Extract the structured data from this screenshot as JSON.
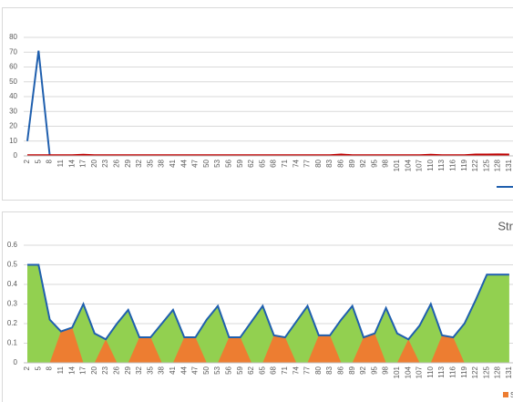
{
  "chart_data": [
    {
      "type": "line",
      "ylim": [
        0,
        80
      ],
      "yticks": [
        0,
        10,
        20,
        30,
        40,
        50,
        60,
        70,
        80
      ],
      "grid": true,
      "categories": [
        2,
        5,
        8,
        11,
        14,
        17,
        20,
        23,
        26,
        29,
        32,
        35,
        38,
        41,
        44,
        47,
        50,
        53,
        56,
        59,
        62,
        65,
        68,
        71,
        74,
        77,
        80,
        83,
        86,
        89,
        92,
        95,
        98,
        101,
        104,
        107,
        110,
        113,
        116,
        119,
        122,
        125,
        128,
        131
      ],
      "series": [
        {
          "color": "#1f5fae",
          "values": [
            10,
            71,
            0,
            null,
            null,
            null,
            null,
            null,
            null,
            null,
            null,
            null,
            null,
            null,
            null,
            null,
            null,
            null,
            null,
            null,
            null,
            null,
            null,
            null,
            null,
            null,
            null,
            null,
            null,
            null,
            null,
            null,
            null,
            null,
            null,
            null,
            null,
            null,
            null,
            null,
            null,
            null,
            null,
            null
          ]
        },
        {
          "color": "#c00000",
          "values": [
            0.5,
            0.5,
            0.5,
            0.5,
            0.5,
            0.8,
            0.5,
            0.5,
            0.5,
            0.5,
            0.5,
            0.5,
            0.5,
            0.5,
            0.5,
            0.5,
            0.5,
            0.5,
            0.5,
            0.5,
            0.5,
            0.5,
            0.5,
            0.5,
            0.5,
            0.5,
            0.5,
            0.5,
            0.9,
            0.5,
            0.5,
            0.5,
            0.5,
            0.5,
            0.5,
            0.5,
            0.8,
            0.5,
            0.5,
            0.5,
            0.9,
            0.9,
            1,
            0.9
          ]
        }
      ]
    },
    {
      "type": "area",
      "title": "Str",
      "ylim": [
        0,
        0.6
      ],
      "yticks": [
        0,
        0.1,
        0.2,
        0.3,
        0.4,
        0.5,
        0.6
      ],
      "grid": true,
      "categories": [
        2,
        5,
        8,
        11,
        14,
        17,
        20,
        23,
        26,
        29,
        32,
        35,
        38,
        41,
        44,
        47,
        50,
        53,
        56,
        59,
        62,
        65,
        68,
        71,
        74,
        77,
        80,
        83,
        86,
        89,
        92,
        95,
        98,
        101,
        104,
        107,
        110,
        113,
        116,
        119,
        122,
        125,
        128,
        131
      ],
      "series": [
        {
          "kind": "area",
          "color": "#92d050",
          "values": [
            0.5,
            0.5,
            0.22,
            0.16,
            0.18,
            0.3,
            0.15,
            0.12,
            0.2,
            0.27,
            0.13,
            0.13,
            0.2,
            0.27,
            0.13,
            0.13,
            0.22,
            0.29,
            0.13,
            0.13,
            0.21,
            0.29,
            0.14,
            0.13,
            0.21,
            0.29,
            0.14,
            0.14,
            0.22,
            0.29,
            0.13,
            0.15,
            0.28,
            0.15,
            0.12,
            0.19,
            0.3,
            0.14,
            0.13,
            0.2,
            0.32,
            0.45,
            0.45,
            0.45
          ]
        },
        {
          "kind": "area",
          "name": "S",
          "color": "#ed7d31",
          "values": [
            0,
            0,
            0,
            0.16,
            0.18,
            0,
            0,
            0.12,
            0,
            0,
            0.13,
            0.13,
            0,
            0,
            0.13,
            0.13,
            0,
            0,
            0.13,
            0.13,
            0,
            0,
            0.14,
            0.13,
            0,
            0,
            0.14,
            0.14,
            0,
            0,
            0.13,
            0.15,
            0,
            0,
            0.12,
            0,
            0,
            0.14,
            0.13,
            0,
            0,
            0,
            0,
            0
          ]
        },
        {
          "kind": "line",
          "color": "#1f5fae",
          "values": [
            0.5,
            0.5,
            0.22,
            0.16,
            0.18,
            0.3,
            0.15,
            0.12,
            0.2,
            0.27,
            0.13,
            0.13,
            0.2,
            0.27,
            0.13,
            0.13,
            0.22,
            0.29,
            0.13,
            0.13,
            0.21,
            0.29,
            0.14,
            0.13,
            0.21,
            0.29,
            0.14,
            0.14,
            0.22,
            0.29,
            0.13,
            0.15,
            0.28,
            0.15,
            0.12,
            0.19,
            0.3,
            0.14,
            0.13,
            0.2,
            0.32,
            0.45,
            0.45,
            0.45
          ]
        }
      ]
    }
  ]
}
